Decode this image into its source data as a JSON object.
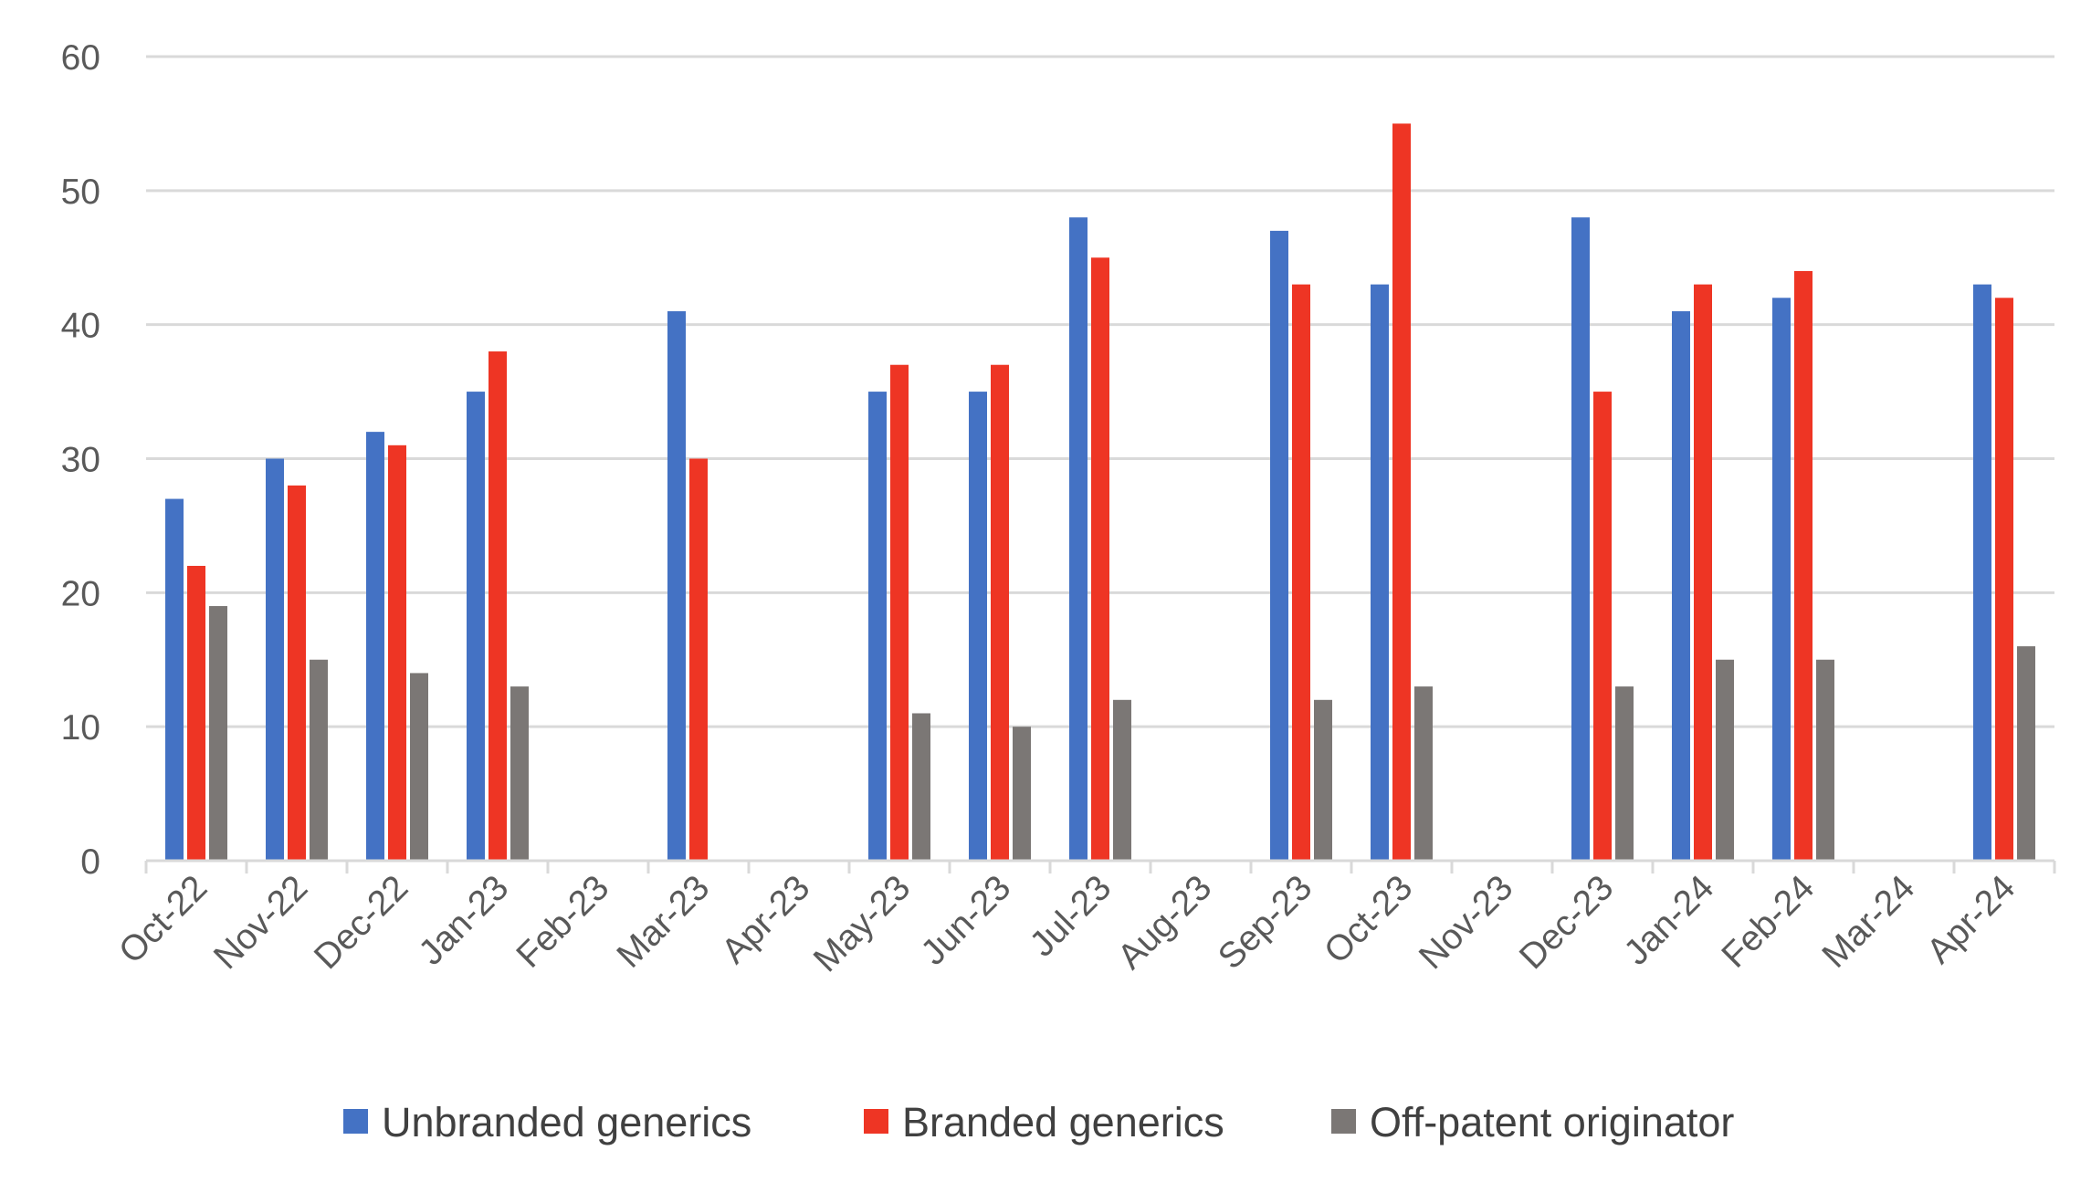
{
  "chart_data": {
    "type": "bar",
    "title": "",
    "xlabel": "",
    "ylabel": "",
    "ylim": [
      0,
      60
    ],
    "yticks": [
      0,
      10,
      20,
      30,
      40,
      50,
      60
    ],
    "grid": true,
    "legend_position": "bottom",
    "categories": [
      "Oct-22",
      "Nov-22",
      "Dec-22",
      "Jan-23",
      "Feb-23",
      "Mar-23",
      "Apr-23",
      "May-23",
      "Jun-23",
      "Jul-23",
      "Aug-23",
      "Sep-23",
      "Oct-23",
      "Nov-23",
      "Dec-23",
      "Jan-24",
      "Feb-24",
      "Mar-24",
      "Apr-24"
    ],
    "series": [
      {
        "name": "Unbranded generics",
        "color": "#4472C4",
        "values": [
          27,
          30,
          32,
          35,
          null,
          41,
          null,
          35,
          35,
          48,
          null,
          47,
          43,
          null,
          48,
          41,
          42,
          null,
          43
        ]
      },
      {
        "name": "Branded generics",
        "color": "#EE3524",
        "values": [
          22,
          28,
          31,
          38,
          null,
          30,
          null,
          37,
          37,
          45,
          null,
          43,
          55,
          null,
          35,
          43,
          44,
          null,
          42
        ]
      },
      {
        "name": "Off-patent originator",
        "color": "#7B7775",
        "values": [
          19,
          15,
          14,
          13,
          null,
          null,
          null,
          11,
          10,
          12,
          null,
          12,
          13,
          null,
          13,
          15,
          15,
          null,
          16
        ]
      }
    ]
  }
}
